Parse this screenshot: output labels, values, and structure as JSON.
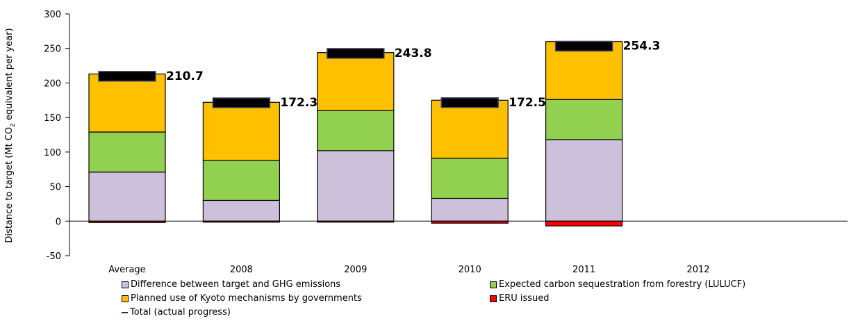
{
  "chart_data": {
    "type": "bar",
    "stacked": true,
    "ylabel": "Distance to target (Mt CO₂ equivalent per year)",
    "ylabel_parts": [
      "Distance to target (Mt CO",
      "2",
      " equivalent per year)"
    ],
    "ylim": [
      -50,
      300
    ],
    "yticks": [
      -50,
      0,
      50,
      100,
      150,
      200,
      250,
      300
    ],
    "categories": [
      "Average",
      "2008",
      "2009",
      "2010",
      "2011",
      "2012"
    ],
    "series": [
      {
        "name": "Difference between target and GHG emissions",
        "color": "#ccc0da",
        "values": [
          71,
          30,
          102,
          33,
          118,
          null
        ]
      },
      {
        "name": "Expected carbon sequestration from forestry (LULUCF)",
        "color": "#92d050",
        "values": [
          58,
          58,
          58,
          58,
          58,
          null
        ]
      },
      {
        "name": "Planned use of Kyoto mechanisms by governments",
        "color": "#ffc000",
        "values": [
          84,
          84,
          84,
          84,
          84,
          null
        ]
      },
      {
        "name": "ERU issued",
        "color": "#ff0000",
        "values": [
          -2,
          -0.5,
          -1,
          -3,
          -7,
          null
        ]
      }
    ],
    "total": {
      "name": "Total (actual progress)",
      "color": "#1f2d5a",
      "values": [
        210.7,
        172.3,
        243.8,
        172.5,
        254.3,
        null
      ],
      "labels": [
        "210.7",
        "172.3",
        "243.8",
        "172.5",
        "254.3",
        ""
      ]
    }
  }
}
